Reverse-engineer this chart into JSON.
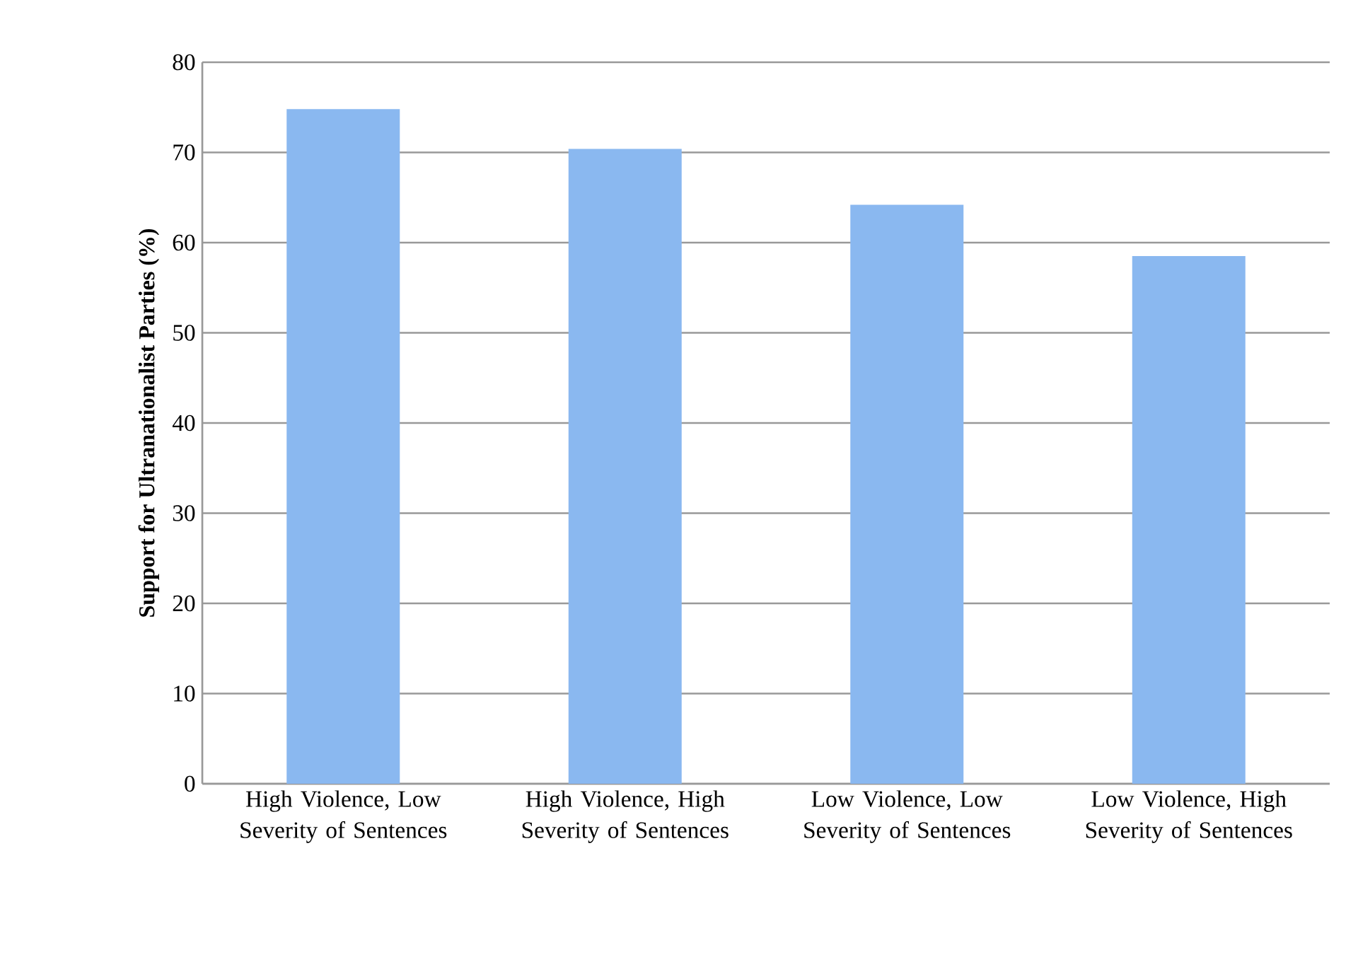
{
  "chart_data": {
    "type": "bar",
    "ylabel": "Support for Ultranationalist Parties (%)",
    "categories": [
      "High Violence, Low Severity of Sentences",
      "High Violence, High Severity of Sentences",
      "Low Violence, Low Severity of Sentences",
      "Low Violence, High Severity of Sentences"
    ],
    "values": [
      74.8,
      70.4,
      64.2,
      58.5
    ],
    "color": "#8ab8f0",
    "ylim": [
      0,
      80
    ],
    "yticks": [
      0,
      10,
      20,
      30,
      40,
      50,
      60,
      70,
      80
    ],
    "grid": "y"
  }
}
